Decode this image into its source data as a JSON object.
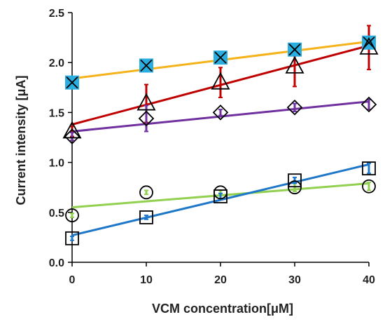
{
  "chart_data": {
    "type": "scatter",
    "xlabel": "VCM concentration[μM]",
    "ylabel": "Current intensity [μA]",
    "xlim": [
      0,
      40
    ],
    "ylim": [
      0,
      2.5
    ],
    "x_ticks": [
      "0",
      "10",
      "20",
      "30",
      "40"
    ],
    "y_ticks": [
      "0.0",
      "0.5",
      "1.0",
      "1.5",
      "2.0",
      "2.5"
    ],
    "grid": false,
    "legend": "none",
    "x": [
      0,
      10,
      20,
      30,
      40
    ],
    "series": [
      {
        "marker": "filled-square-x",
        "color": "#f5b21a",
        "marker_fill": "#2aaee0",
        "values": [
          1.8,
          1.97,
          2.05,
          2.13,
          2.2
        ],
        "errors": [
          0.02,
          0.05,
          0.03,
          0.03,
          0.05
        ],
        "fit": [
          1.84,
          2.21
        ]
      },
      {
        "marker": "triangle",
        "color": "#c00000",
        "values": [
          1.31,
          1.59,
          1.8,
          1.96,
          2.15
        ],
        "errors": [
          0.05,
          0.19,
          0.15,
          0.2,
          0.22
        ],
        "fit": [
          1.38,
          2.17
        ]
      },
      {
        "marker": "diamond",
        "color": "#7030a0",
        "values": [
          1.26,
          1.44,
          1.5,
          1.55,
          1.58
        ],
        "errors": [
          0.04,
          0.13,
          0.03,
          0.04,
          0.05
        ],
        "fit": [
          1.31,
          1.61
        ]
      },
      {
        "marker": "circle",
        "color": "#92d050",
        "values": [
          0.47,
          0.7,
          0.7,
          0.75,
          0.76
        ],
        "errors": [
          0.02,
          0.02,
          0.02,
          0.04,
          0.04
        ],
        "fit": [
          0.55,
          0.79
        ]
      },
      {
        "marker": "square",
        "color": "#1f77c8",
        "values": [
          0.24,
          0.45,
          0.66,
          0.82,
          0.94
        ],
        "errors": [
          0.02,
          0.02,
          0.03,
          0.03,
          0.05
        ],
        "fit": [
          0.27,
          0.98
        ]
      }
    ]
  }
}
